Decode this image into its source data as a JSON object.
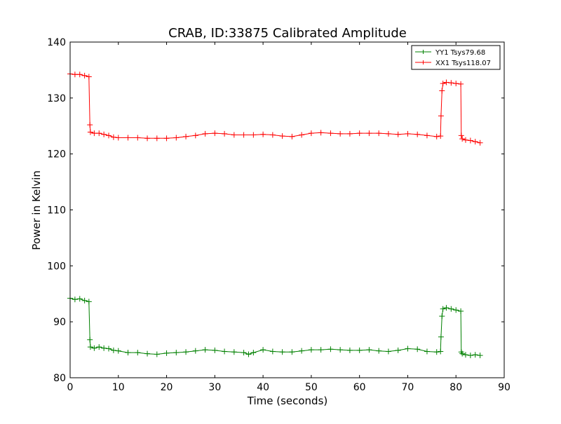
{
  "chart_data": {
    "type": "line",
    "title": "CRAB, ID:33875 Calibrated Amplitude",
    "xlabel": "Time (seconds)",
    "ylabel": "Power in Kelvin",
    "xlim": [
      0,
      90
    ],
    "ylim": [
      80,
      140
    ],
    "xticks": [
      0,
      10,
      20,
      30,
      40,
      50,
      60,
      70,
      80,
      90
    ],
    "yticks": [
      80,
      90,
      100,
      110,
      120,
      130,
      140
    ],
    "grid": false,
    "legend_position": "top-right",
    "marker": "+",
    "series": [
      {
        "name": "YY1 Tsys79.68",
        "color": "#008000",
        "x": [
          0,
          1,
          2,
          3,
          3.9,
          4.1,
          4.2,
          5,
          6,
          7,
          8,
          9,
          10,
          12,
          14,
          16,
          18,
          20,
          22,
          24,
          26,
          28,
          30,
          32,
          34,
          36,
          37,
          38,
          40,
          42,
          44,
          46,
          48,
          50,
          52,
          54,
          56,
          58,
          60,
          62,
          64,
          66,
          68,
          70,
          72,
          74,
          76,
          76.8,
          76.9,
          77.1,
          77.3,
          78,
          79,
          80,
          81,
          81.1,
          81.3,
          82,
          83,
          84,
          85
        ],
        "y": [
          94.2,
          94.0,
          94.1,
          93.8,
          93.6,
          86.8,
          85.5,
          85.3,
          85.5,
          85.3,
          85.2,
          84.9,
          84.8,
          84.5,
          84.5,
          84.3,
          84.2,
          84.4,
          84.5,
          84.6,
          84.8,
          85.0,
          84.9,
          84.7,
          84.6,
          84.5,
          84.2,
          84.5,
          85.0,
          84.7,
          84.6,
          84.6,
          84.8,
          85.0,
          85.0,
          85.1,
          85.0,
          84.9,
          84.9,
          85.0,
          84.8,
          84.7,
          84.9,
          85.2,
          85.1,
          84.7,
          84.6,
          84.7,
          87.3,
          91.0,
          92.3,
          92.5,
          92.3,
          92.1,
          91.9,
          84.6,
          84.3,
          84.1,
          84.0,
          84.1,
          84.0
        ]
      },
      {
        "name": "XX1 Tsys118.07",
        "color": "#ff0000",
        "x": [
          0,
          1,
          2,
          3,
          3.9,
          4.1,
          4.2,
          5,
          6,
          7,
          8,
          9,
          10,
          12,
          14,
          16,
          18,
          20,
          22,
          24,
          26,
          28,
          30,
          32,
          34,
          36,
          38,
          40,
          42,
          44,
          46,
          48,
          50,
          52,
          54,
          56,
          58,
          60,
          62,
          64,
          66,
          68,
          70,
          72,
          74,
          76,
          76.8,
          76.9,
          77.1,
          77.3,
          78,
          79,
          80,
          81,
          81.1,
          81.3,
          82,
          83,
          84,
          85
        ],
        "y": [
          134.3,
          134.2,
          134.2,
          134.0,
          133.8,
          125.2,
          123.9,
          123.7,
          123.7,
          123.5,
          123.3,
          123.0,
          122.9,
          122.9,
          122.9,
          122.8,
          122.8,
          122.8,
          122.9,
          123.1,
          123.3,
          123.6,
          123.7,
          123.6,
          123.4,
          123.4,
          123.4,
          123.5,
          123.4,
          123.2,
          123.1,
          123.4,
          123.7,
          123.8,
          123.7,
          123.6,
          123.6,
          123.7,
          123.7,
          123.7,
          123.6,
          123.5,
          123.6,
          123.5,
          123.3,
          123.1,
          123.2,
          126.8,
          131.3,
          132.6,
          132.8,
          132.7,
          132.6,
          132.5,
          123.3,
          122.7,
          122.5,
          122.4,
          122.2,
          122.0
        ]
      }
    ]
  }
}
